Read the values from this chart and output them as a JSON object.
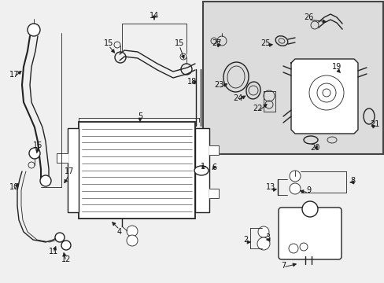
{
  "bg_color": "#f0f0f0",
  "line_color": "#222222",
  "inset_bg": "#dcdcdc",
  "inset_border": "#444444",
  "figsize": [
    4.89,
    3.6
  ],
  "dpi": 100,
  "white": "#ffffff",
  "lw_main": 1.0,
  "lw_thin": 0.6,
  "fs_label": 7.0
}
